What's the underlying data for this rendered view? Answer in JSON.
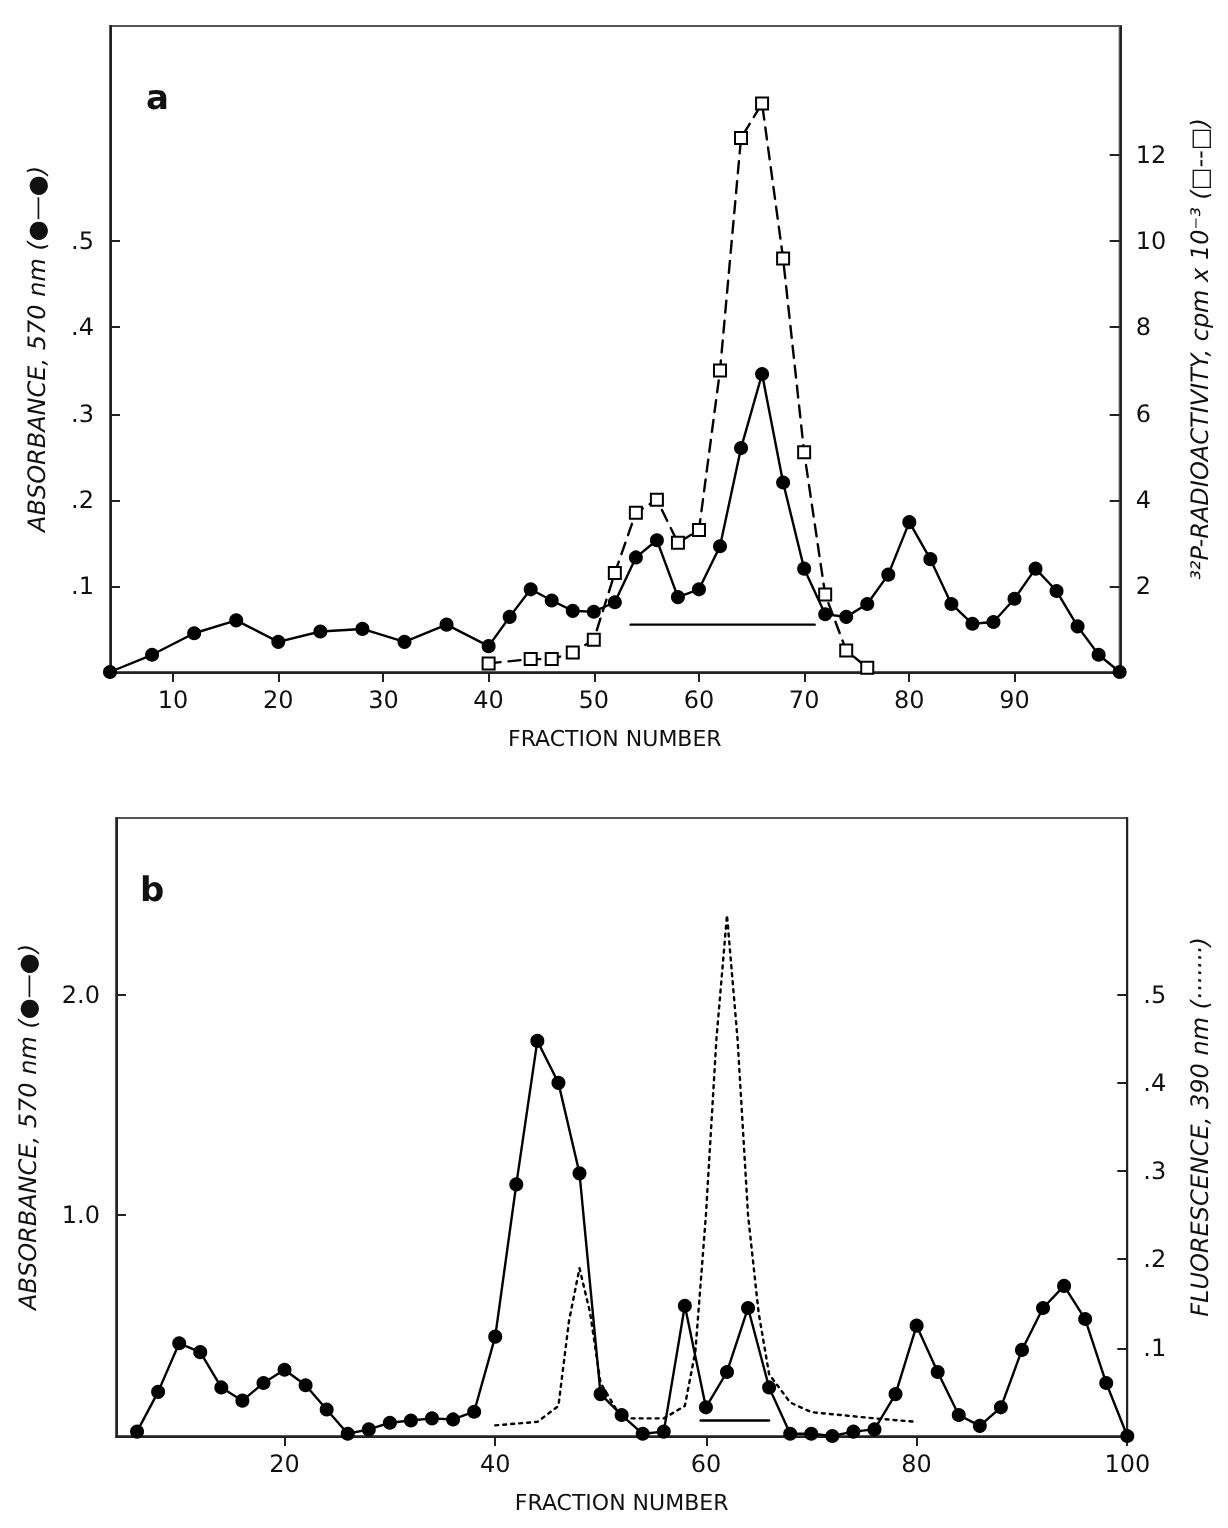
{
  "chart_data": [
    {
      "type": "line",
      "annotations": [
        "a"
      ],
      "xlabel": "FRACTION NUMBER",
      "ylabel": "ABSORBANCE, 570 nm (●—●)",
      "y2label": "³²P-RADIOACTIVITY, cpm x 10⁻³ (□--□)",
      "xlim": [
        4,
        100
      ],
      "xticks": [
        10,
        20,
        30,
        40,
        50,
        60,
        70,
        80,
        90
      ],
      "ylim": [
        0,
        0.75
      ],
      "yticks": [
        {
          "value": 0.1,
          "label": ".1"
        },
        {
          "value": 0.2,
          "label": ".2"
        },
        {
          "value": 0.3,
          "label": ".3"
        },
        {
          "value": 0.4,
          "label": ".4"
        },
        {
          "value": 0.5,
          "label": ".5"
        }
      ],
      "y2lim": [
        0,
        15
      ],
      "y2ticks": [
        2,
        4,
        6,
        8,
        10,
        12
      ],
      "grid": false,
      "legend": false,
      "series": [
        {
          "color": "#000000",
          "marker": "circle",
          "line_style": "solid",
          "x": [
            4,
            8,
            12,
            16,
            20,
            24,
            28,
            32,
            36,
            40,
            42,
            44,
            46,
            48,
            50,
            52,
            54,
            56,
            58,
            60,
            62,
            64,
            66,
            68,
            70,
            72,
            74,
            76,
            78,
            80,
            82,
            84,
            86,
            88,
            90,
            92,
            94,
            96,
            98,
            100
          ],
          "values": [
            0.0,
            0.02,
            0.045,
            0.06,
            0.035,
            0.047,
            0.05,
            0.035,
            0.055,
            0.03,
            0.064,
            0.096,
            0.083,
            0.071,
            0.07,
            0.081,
            0.133,
            0.153,
            0.087,
            0.096,
            0.146,
            0.26,
            0.346,
            0.22,
            0.12,
            0.067,
            0.064,
            0.079,
            0.113,
            0.174,
            0.131,
            0.079,
            0.056,
            0.058,
            0.085,
            0.12,
            0.094,
            0.053,
            0.02,
            0.0
          ]
        },
        {
          "color": "#000000",
          "marker": "square",
          "line_style": "dashed",
          "axis": "y2",
          "x": [
            40,
            44,
            46,
            48,
            50,
            52,
            54,
            56,
            58,
            60,
            62,
            64,
            66,
            68,
            70,
            72,
            74,
            76
          ],
          "values": [
            0.2,
            0.3,
            0.3,
            0.45,
            0.75,
            2.3,
            3.7,
            4.0,
            3.0,
            3.3,
            7.0,
            12.4,
            13.2,
            9.6,
            5.1,
            1.8,
            0.5,
            0.1
          ]
        },
        {
          "color": "#000000",
          "marker": "none",
          "line_style": "solid",
          "x": [
            53.5,
            71
          ],
          "values": [
            0.055,
            0.055
          ]
        }
      ]
    },
    {
      "type": "line",
      "annotations": [
        "b"
      ],
      "xlabel": "FRACTION NUMBER",
      "ylabel": "ABSORBANCE, 570 nm (●—●)",
      "y2label": "FLUORESCENCE, 390 nm (·······)",
      "xlim": [
        4,
        100
      ],
      "xticks": [
        20,
        40,
        60,
        80,
        100
      ],
      "ylim": [
        0,
        2.8
      ],
      "yticks": [
        {
          "value": 1,
          "label": "1.0"
        },
        {
          "value": 2,
          "label": "2.0"
        }
      ],
      "y2lim": [
        0,
        0.7
      ],
      "y2ticks": [
        {
          "value": 0.1,
          "label": ".1"
        },
        {
          "value": 0.2,
          "label": ".2"
        },
        {
          "value": 0.3,
          "label": ".3"
        },
        {
          "value": 0.4,
          "label": ".4"
        },
        {
          "value": 0.5,
          "label": ".5"
        }
      ],
      "grid": false,
      "legend": false,
      "series": [
        {
          "color": "#000000",
          "marker": "circle",
          "line_style": "solid",
          "x": [
            6,
            8,
            10,
            12,
            14,
            16,
            18,
            20,
            22,
            24,
            26,
            28,
            30,
            32,
            34,
            36,
            38,
            40,
            42,
            44,
            46,
            48,
            50,
            52,
            54,
            56,
            58,
            60,
            62,
            64,
            66,
            68,
            70,
            72,
            74,
            76,
            78,
            80,
            82,
            84,
            86,
            88,
            90,
            92,
            94,
            96,
            98,
            100
          ],
          "values": [
            0.02,
            0.2,
            0.42,
            0.38,
            0.22,
            0.16,
            0.24,
            0.3,
            0.23,
            0.12,
            0.01,
            0.03,
            0.06,
            0.07,
            0.08,
            0.075,
            0.11,
            0.45,
            1.14,
            1.79,
            1.6,
            1.19,
            0.19,
            0.095,
            0.01,
            0.02,
            0.59,
            0.13,
            0.29,
            0.58,
            0.22,
            0.01,
            0.01,
            0.0,
            0.02,
            0.03,
            0.19,
            0.5,
            0.29,
            0.095,
            0.046,
            0.13,
            0.39,
            0.58,
            0.68,
            0.53,
            0.24,
            0.0
          ]
        },
        {
          "color": "#000000",
          "marker": "none",
          "line_style": "dotted",
          "axis": "y2",
          "x": [
            40,
            44,
            46,
            47,
            48,
            49,
            50,
            52,
            56,
            58,
            59,
            60,
            61,
            62,
            63,
            64,
            65,
            66,
            68,
            70,
            76,
            80
          ],
          "values": [
            0.012,
            0.016,
            0.034,
            0.13,
            0.19,
            0.14,
            0.06,
            0.02,
            0.02,
            0.034,
            0.096,
            0.25,
            0.45,
            0.59,
            0.45,
            0.25,
            0.14,
            0.07,
            0.038,
            0.027,
            0.02,
            0.016
          ]
        },
        {
          "color": "#000000",
          "marker": "none",
          "line_style": "solid",
          "x": [
            59.5,
            66
          ],
          "values": [
            0.07,
            0.07
          ]
        }
      ]
    }
  ]
}
